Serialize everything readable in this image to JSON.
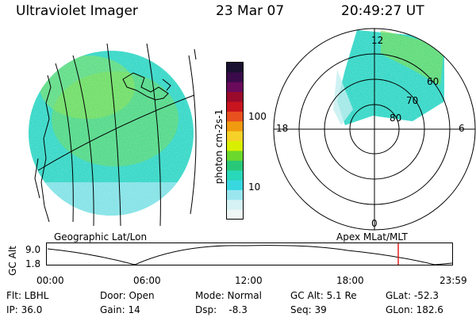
{
  "header": {
    "instrument": "Ultraviolet Imager",
    "date": "23 Mar 07",
    "time": "20:49:27 UT"
  },
  "colorbar": {
    "label": "photon cm-2s-1",
    "tick_labels": [
      "100",
      "10"
    ],
    "colors": [
      "#1a1030",
      "#3a0a4a",
      "#6a0a5a",
      "#9a0a2a",
      "#c8141e",
      "#e8501e",
      "#f09a10",
      "#f6d228",
      "#d8f000",
      "#6ad82c",
      "#28c878",
      "#28d8b8",
      "#38d8e0",
      "#9ae6ef",
      "#d6f2f5",
      "#eef6f6"
    ]
  },
  "panels": {
    "left_caption": "Geographic Lat/Lon",
    "right_caption": "Apex MLat/MLT",
    "polar": {
      "mlt_labels": [
        "12",
        "18",
        "6",
        "0"
      ],
      "lat_labels": [
        "60",
        "70",
        "80"
      ]
    }
  },
  "timeline": {
    "ylabel": "GC Alt",
    "y_top": "9.0",
    "y_bottom": "1.8",
    "x_ticks": [
      "00:00",
      "06:00",
      "12:00",
      "18:00",
      "23:59"
    ],
    "marker_color": "#e02020"
  },
  "info": {
    "row1": [
      "Flt: LBHL",
      "Door: Open",
      "Mode: Normal",
      "GC Alt: 5.1 Re",
      "GLat: -52.3"
    ],
    "row2": [
      "IP: 36.0",
      "Gain: 14",
      "Dsp:    -8.3",
      "Seq: 39",
      "GLon: 182.6"
    ]
  },
  "colors": {
    "aurora_main": "#38d8c8",
    "aurora_green": "#7ee04a",
    "aurora_light": "#bfeef0"
  }
}
